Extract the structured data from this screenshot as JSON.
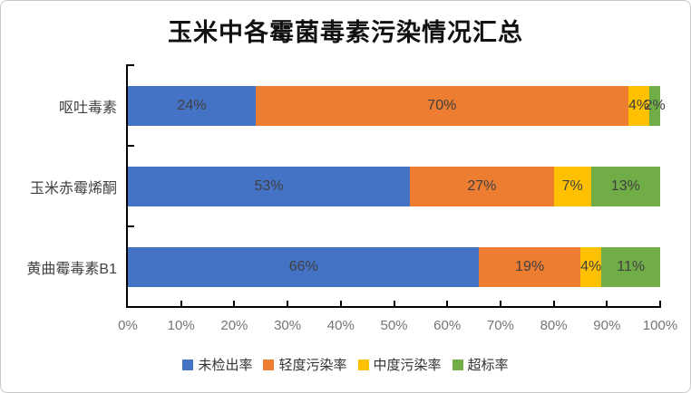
{
  "chart_data": {
    "type": "bar",
    "orientation": "horizontal",
    "stacked": true,
    "title": "玉米中各霉菌毒素污染情况汇总",
    "categories": [
      "呕吐毒素",
      "玉米赤霉烯酮",
      "黄曲霉毒素B1"
    ],
    "series": [
      {
        "name": "未检出率",
        "color": "#4472C4",
        "values": [
          24,
          53,
          66
        ],
        "labels": [
          "24%",
          "53%",
          "66%"
        ]
      },
      {
        "name": "轻度污染率",
        "color": "#ED7D31",
        "values": [
          70,
          27,
          19
        ],
        "labels": [
          "70%",
          "27%",
          "19%"
        ]
      },
      {
        "name": "中度污染率",
        "color": "#FFC000",
        "values": [
          4,
          7,
          4
        ],
        "labels": [
          "4%",
          "7%",
          "4%"
        ]
      },
      {
        "name": "超标率",
        "color": "#70AD47",
        "values": [
          2,
          13,
          11
        ],
        "labels": [
          "2%",
          "13%",
          "11%"
        ]
      }
    ],
    "x_axis": {
      "min": 0,
      "max": 100,
      "tick_labels": [
        "0%",
        "10%",
        "20%",
        "30%",
        "40%",
        "50%",
        "60%",
        "70%",
        "80%",
        "90%",
        "100%"
      ]
    },
    "legend": {
      "position": "bottom",
      "entries": [
        "未检出率",
        "轻度污染率",
        "中度污染率",
        "超标率"
      ]
    },
    "colors": {
      "axis": "#000000",
      "bar_value_label": "#404040",
      "tick_label": "#757575",
      "frame_border": "#c9c9c9"
    }
  }
}
